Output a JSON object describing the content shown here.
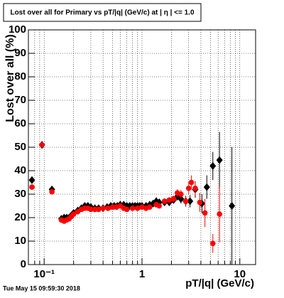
{
  "chart_data": {
    "type": "scatter",
    "title": "Lost over all for Primary vs pT/|q| (GeV/c) at | η | <= 1.0",
    "x_label": "pT/|q| (GeV/c)",
    "y_label": "Lost over all (%)",
    "timestamp": "Tue May 15 09:59:30 2018",
    "log_x": true,
    "grid": true,
    "xlim": [
      0.069,
      14.5
    ],
    "ylim": [
      0,
      100
    ],
    "xticks": [
      {
        "value": 0.1,
        "label": "10⁻¹"
      },
      1,
      10
    ],
    "xminor_ticks": [
      0.08,
      0.09,
      0.2,
      0.3,
      0.4,
      0.5,
      0.6,
      0.7,
      0.8,
      0.9,
      2,
      3,
      4,
      5,
      6,
      7,
      8,
      9
    ],
    "yticks": [
      0,
      10,
      20,
      30,
      40,
      50,
      60,
      70,
      80,
      90,
      100
    ],
    "series": [
      {
        "marker": "diamond",
        "color": "#000000",
        "x": [
          0.075,
          0.095,
          0.12,
          0.15,
          0.16,
          0.17,
          0.18,
          0.19,
          0.2,
          0.22,
          0.24,
          0.26,
          0.28,
          0.3,
          0.33,
          0.36,
          0.4,
          0.44,
          0.48,
          0.52,
          0.56,
          0.6,
          0.65,
          0.7,
          0.75,
          0.8,
          0.85,
          0.9,
          0.95,
          1.0,
          1.1,
          1.2,
          1.3,
          1.4,
          1.5,
          1.7,
          1.9,
          2.1,
          2.3,
          2.5,
          2.8,
          3.1,
          3.5,
          4.1,
          4.6,
          5.3,
          6.2,
          8.3
        ],
        "values": [
          36,
          51,
          32,
          19.5,
          20,
          20,
          20,
          21,
          22,
          23,
          24,
          25,
          25,
          24.5,
          24,
          24,
          24,
          24.5,
          25,
          25,
          25,
          25.5,
          25.5,
          25,
          25,
          25,
          25,
          25,
          25,
          25,
          25,
          25.5,
          26,
          27,
          26.5,
          26.5,
          26.5,
          27.5,
          29,
          28,
          27,
          27,
          32,
          26,
          33,
          42,
          44.5,
          25
        ],
        "errors": [
          1,
          1,
          0.8,
          0.6,
          0.5,
          0.5,
          0.5,
          0.5,
          0.5,
          0.5,
          0.5,
          0.5,
          0.5,
          0.5,
          0.5,
          0.5,
          0.5,
          0.5,
          0.5,
          0.5,
          0.5,
          0.5,
          0.5,
          0.5,
          0.5,
          0.5,
          0.5,
          0.5,
          0.5,
          0.6,
          0.6,
          0.7,
          0.8,
          0.9,
          1,
          1.1,
          1.3,
          1.5,
          1.7,
          2,
          2.3,
          2.6,
          3.5,
          4,
          5,
          6,
          12,
          25
        ]
      },
      {
        "marker": "circle",
        "color": "#ff0000",
        "x": [
          0.075,
          0.095,
          0.12,
          0.15,
          0.16,
          0.17,
          0.18,
          0.19,
          0.2,
          0.22,
          0.24,
          0.26,
          0.28,
          0.3,
          0.33,
          0.36,
          0.4,
          0.45,
          0.5,
          0.55,
          0.6,
          0.65,
          0.7,
          0.8,
          0.9,
          1.0,
          1.1,
          1.2,
          1.4,
          1.5,
          1.7,
          1.9,
          2.1,
          2.3,
          2.5,
          2.8,
          3.0,
          3.2,
          3.5,
          3.9,
          4.4,
          5.3,
          6.2
        ],
        "values": [
          33,
          51,
          31,
          19,
          18.5,
          19,
          19.5,
          20.5,
          21.5,
          22.5,
          23.5,
          24,
          24,
          23.5,
          23.5,
          23.5,
          24,
          24,
          24.5,
          24.5,
          25,
          24,
          23.5,
          24,
          24,
          24.5,
          24,
          24.5,
          25.5,
          25,
          27,
          27.5,
          28,
          30.5,
          30,
          27,
          32.5,
          35,
          32.5,
          26.5,
          22,
          9,
          21.5
        ],
        "errors": [
          1,
          1,
          0.8,
          0.6,
          0.5,
          0.5,
          0.5,
          0.5,
          0.5,
          0.5,
          0.5,
          0.5,
          0.5,
          0.5,
          0.5,
          0.5,
          0.5,
          0.5,
          0.5,
          0.5,
          0.5,
          0.5,
          0.5,
          0.5,
          0.5,
          0.6,
          0.6,
          0.7,
          0.8,
          0.9,
          1,
          1.2,
          1.4,
          1.6,
          1.8,
          2,
          2.5,
          3,
          3,
          4,
          6,
          4,
          12
        ]
      }
    ]
  }
}
